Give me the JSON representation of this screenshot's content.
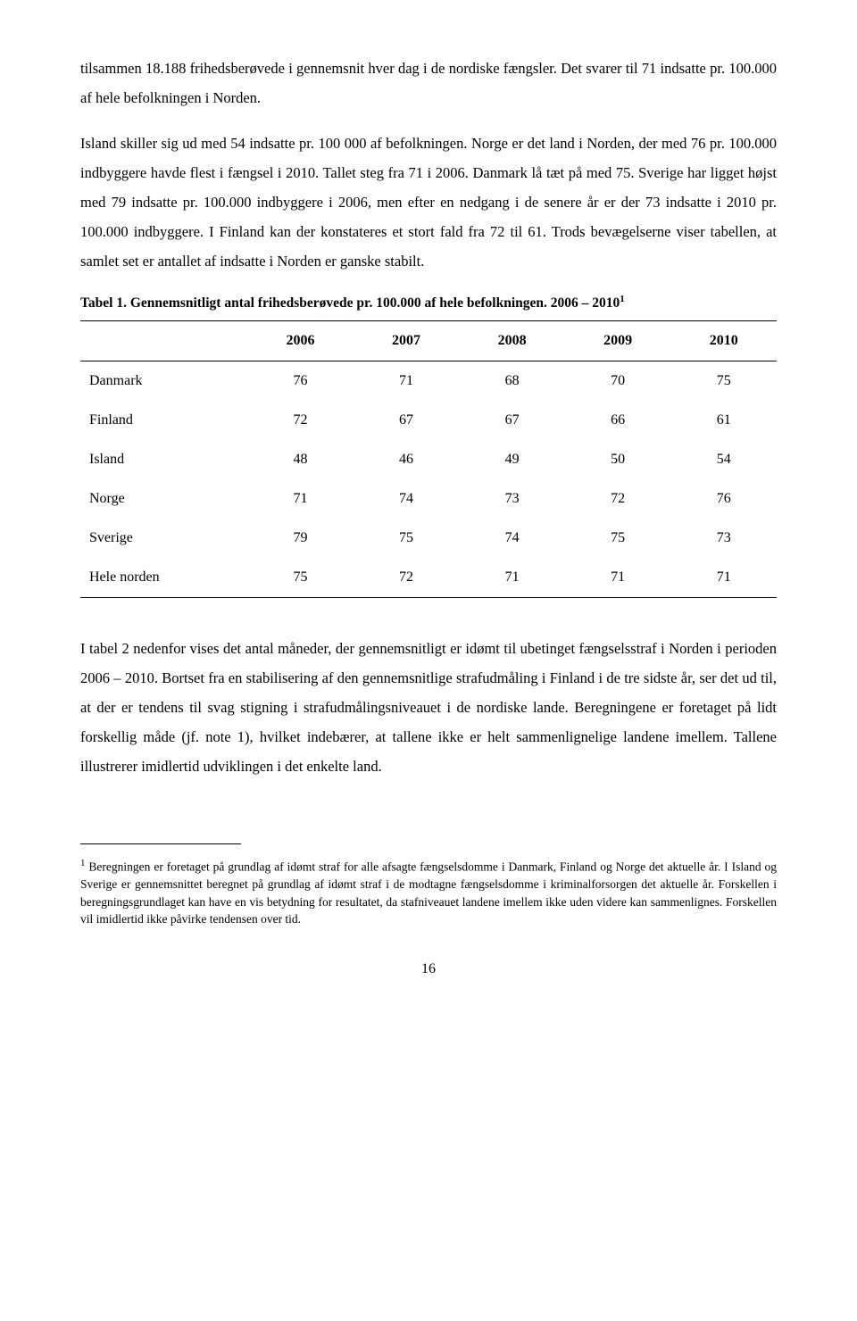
{
  "para1": "tilsammen 18.188 frihedsberøvede i gennemsnit hver dag i de nordiske fængsler. Det svarer til 71 indsatte pr. 100.000 af hele befolkningen i Norden.",
  "para2": "Island skiller sig ud med 54 indsatte pr. 100 000 af befolkningen. Norge er det land i Norden, der med 76 pr. 100.000 indbyggere havde flest i fængsel i 2010. Tallet steg fra 71 i 2006. Danmark lå tæt på med 75. Sverige har ligget højst med 79 indsatte pr. 100.000 indbyggere i 2006, men efter en nedgang i de senere år er der 73 indsatte i 2010 pr. 100.000 indbyggere. I Finland kan der konstateres et stort fald fra 72 til 61. Trods bevægelserne viser tabellen, at samlet set er antallet af indsatte i Norden er ganske stabilt.",
  "tableCaption": "Tabel 1. Gennemsnitligt antal frihedsberøvede pr. 100.000 af hele befolkningen. 2006 – 2010",
  "tableCaptionSup": "1",
  "table": {
    "columns": [
      "",
      "2006",
      "2007",
      "2008",
      "2009",
      "2010"
    ],
    "colWidths": [
      "24%",
      "15.2%",
      "15.2%",
      "15.2%",
      "15.2%",
      "15.2%"
    ],
    "rows": [
      [
        "Danmark",
        "76",
        "71",
        "68",
        "70",
        "75"
      ],
      [
        "Finland",
        "72",
        "67",
        "67",
        "66",
        "61"
      ],
      [
        "Island",
        "48",
        "46",
        "49",
        "50",
        "54"
      ],
      [
        "Norge",
        "71",
        "74",
        "73",
        "72",
        "76"
      ],
      [
        "Sverige",
        "79",
        "75",
        "74",
        "75",
        "73"
      ],
      [
        "Hele norden",
        "75",
        "72",
        "71",
        "71",
        "71"
      ]
    ]
  },
  "para3": "I tabel 2 nedenfor vises det antal måneder, der gennemsnitligt er idømt til ubetinget fængselsstraf i Norden i perioden 2006 – 2010. Bortset fra en stabilisering af den gennemsnitlige strafudmåling i Finland i de tre sidste år, ser det ud til, at der er tendens til svag stigning i strafudmålingsniveauet i de nordiske lande. Beregningene er foretaget på lidt forskellig måde (jf. note 1), hvilket indebærer, at tallene ikke er helt sammenlignelige landene imellem. Tallene illustrerer imidlertid udviklingen i det enkelte land.",
  "footnoteSup": "1",
  "footnote": " Beregningen er foretaget på grundlag af idømt straf for alle afsagte fængselsdomme i Danmark, Finland og Norge det aktuelle år. I Island og Sverige er gennemsnittet beregnet på grundlag af idømt straf i de modtagne fængselsdomme i kriminalforsorgen det aktuelle år. Forskellen i beregningsgrundlaget kan have en vis betydning for resultatet, da stafniveauet landene imellem ikke uden videre kan sammenlignes. Forskellen vil imidlertid ikke påvirke tendensen over tid.",
  "pageNumber": "16"
}
